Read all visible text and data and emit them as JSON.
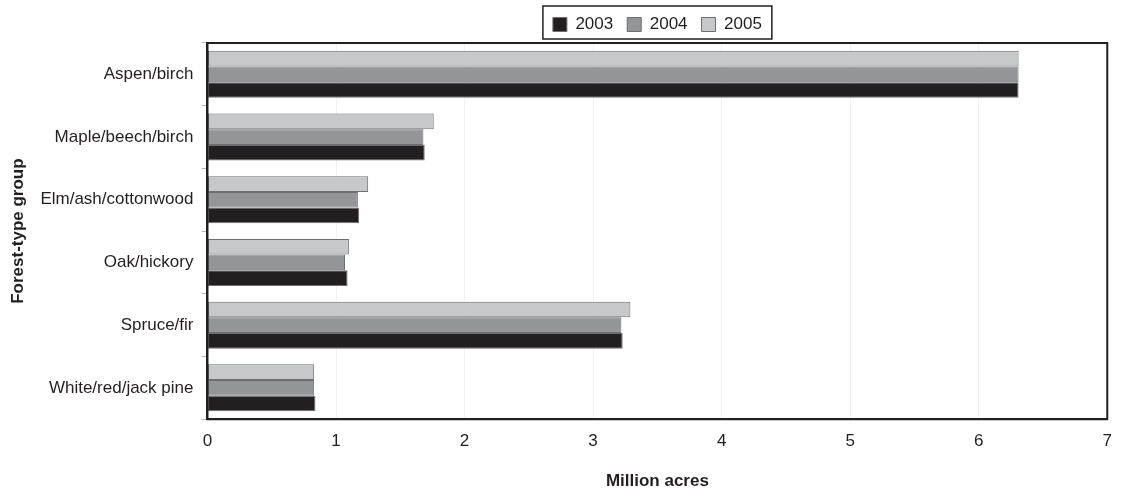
{
  "chart_data": {
    "type": "bar",
    "orientation": "horizontal",
    "xlabel": "Million acres",
    "ylabel": "Forest-type group",
    "categories": [
      "Aspen/birch",
      "Maple/beech/birch",
      "Elm/ash/cottonwood",
      "Oak/hickory",
      "Spruce/fir",
      "White/red/jack pine"
    ],
    "series": [
      {
        "name": "2003",
        "color": "#231f20",
        "values": [
          6.31,
          1.69,
          1.18,
          1.09,
          3.23,
          0.84
        ]
      },
      {
        "name": "2004",
        "color": "#939598",
        "values": [
          6.31,
          1.68,
          1.17,
          1.07,
          3.22,
          0.83
        ]
      },
      {
        "name": "2005",
        "color": "#c7c8ca",
        "values": [
          6.31,
          1.76,
          1.25,
          1.1,
          3.29,
          0.83
        ]
      }
    ],
    "xlim": [
      0,
      7
    ],
    "xticks": [
      0,
      1,
      2,
      3,
      4,
      5,
      6,
      7
    ],
    "grid": "x",
    "legend": "top"
  }
}
